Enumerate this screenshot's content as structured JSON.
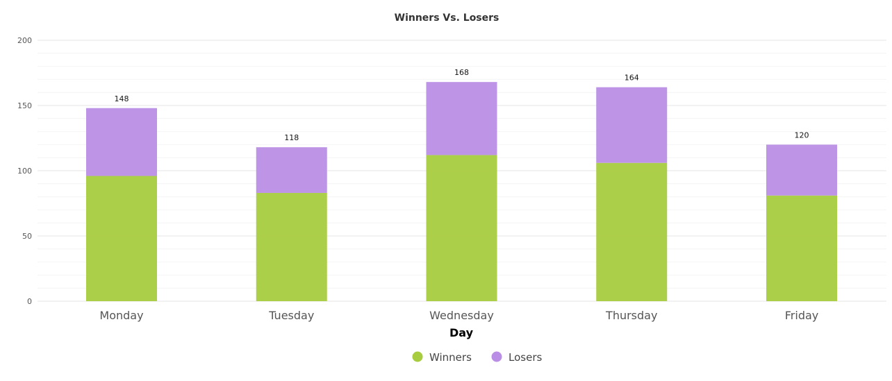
{
  "chart_data": {
    "type": "bar",
    "stacked": true,
    "title": "Winners Vs. Losers",
    "xlabel": "Day",
    "ylabel": "",
    "categories": [
      "Monday",
      "Tuesday",
      "Wednesday",
      "Thursday",
      "Friday"
    ],
    "series": [
      {
        "name": "Winners",
        "values": [
          96,
          83,
          112,
          106,
          81
        ],
        "color": "#a8cc3f"
      },
      {
        "name": "Losers",
        "values": [
          52,
          35,
          56,
          58,
          39
        ],
        "color": "#bb8ee6"
      }
    ],
    "totals": [
      "148",
      "118",
      "168",
      "164",
      "120"
    ],
    "ylim": [
      0,
      200
    ],
    "yticks": [
      "0",
      "50",
      "100",
      "150",
      "200"
    ],
    "grid": true,
    "legend_position": "bottom-center"
  }
}
